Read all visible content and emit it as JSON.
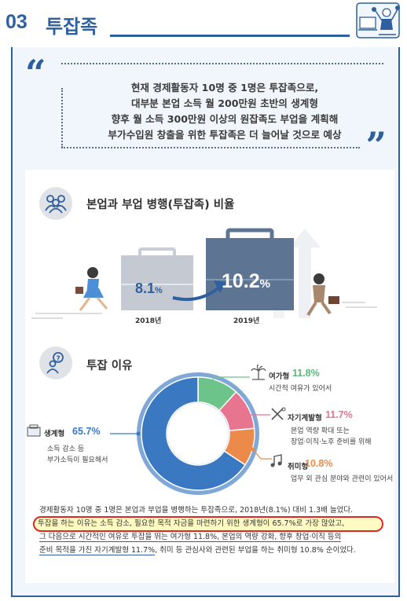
{
  "header": {
    "number": "03",
    "title": "투잡족"
  },
  "quote": {
    "lines": [
      "현재 경제활동자 10명 중 1명은 투잡족으로,",
      "대부분 본업 소득 월 200만원 초반의 생계형",
      "향후 월 소득 300만원 이상의 원잡족도 부업을 계획해",
      "부가수입원 창출을 위한 투잡족은 더 늘어날 것으로 예상"
    ]
  },
  "ratio_section": {
    "title": "본업과 부업 병행(투잡족) 비율",
    "bars": [
      {
        "year": "2018년",
        "value": "8.1",
        "unit": "%"
      },
      {
        "year": "2019년",
        "value": "10.2",
        "unit": "%"
      }
    ]
  },
  "reason_section": {
    "title": "투잡 이유"
  },
  "chart_data": {
    "type": "pie",
    "categories": [
      "생계형",
      "여가형",
      "자기계발형",
      "취미형"
    ],
    "values": [
      65.7,
      11.8,
      11.7,
      10.8
    ],
    "colors": [
      "#3a78c2",
      "#6cc48a",
      "#e8758f",
      "#ec8a4a"
    ],
    "labels": [
      {
        "name": "생계형",
        "pct": "65.7%",
        "desc": [
          "소득 감소 등",
          "부가소득이 필요해서"
        ]
      },
      {
        "name": "여가형",
        "pct": "11.8%",
        "desc": [
          "시간적 여유가 있어서"
        ]
      },
      {
        "name": "자기계발형",
        "pct": "11.7%",
        "desc": [
          "본업 역량 확대 또는",
          "창업·이직·노후 준비를 위해"
        ]
      },
      {
        "name": "취미형",
        "pct": "10.8%",
        "desc": [
          "업무 외 관심 분야와 관련이 있어서"
        ]
      }
    ]
  },
  "bottom": {
    "line1": "경제활동자 10명 중 1명은 본업과 부업을 병행하는 투잡족으로, 2018년(8.1%) 대비 1.3배 늘었다.",
    "line2": "투잡을 하는 이유는 소득 감소, 필요한 목적 자금을 마련하기 위한 생계형이 65.7%로 가장 많았고,",
    "line3": "그 다음으로 시간적인 여유로 투잡을 뛰는 여가형 11.8%, 본업의 역량 강화, 향후 창업·이직 등의",
    "line4a": "준비 목적을 가진 자기계발형 11.7%",
    "line4b": ", 취미 등 관심사와 관련된 부업을 하는 취미형 10.8% 순이었다."
  }
}
